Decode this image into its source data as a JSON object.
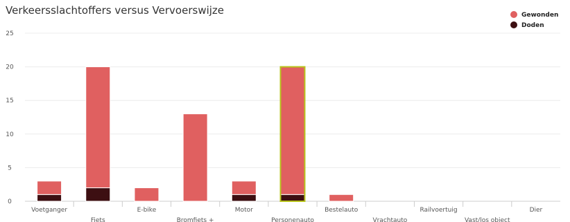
{
  "chart_data": {
    "type": "bar",
    "stacked": true,
    "title": "Verkeersslachtoffers versus Vervoerswijze",
    "categories": [
      "Voetganger",
      "Fiets",
      "E-bike",
      "Bromfiets +",
      "Motor",
      "Personenauto",
      "Bestelauto",
      "Vrachtauto",
      "Railvoertuig",
      "Vast/los object",
      "Dier"
    ],
    "series": [
      {
        "name": "Doden",
        "color": "#3d0f12",
        "values": [
          1,
          2,
          0,
          0,
          1,
          1,
          0,
          0,
          0,
          0,
          0
        ]
      },
      {
        "name": "Gewonden",
        "color": "#e06060",
        "values": [
          2,
          18,
          2,
          13,
          2,
          19,
          1,
          0,
          0,
          0,
          0
        ]
      }
    ],
    "legend_order": [
      "Gewonden",
      "Doden"
    ],
    "highlighted_category": "Personenauto",
    "highlight_color": "#b8c41c",
    "ylim": [
      0,
      25
    ],
    "yticks": [
      0,
      5,
      10,
      15,
      20,
      25
    ],
    "grid": true,
    "legend_position": "top-right"
  }
}
